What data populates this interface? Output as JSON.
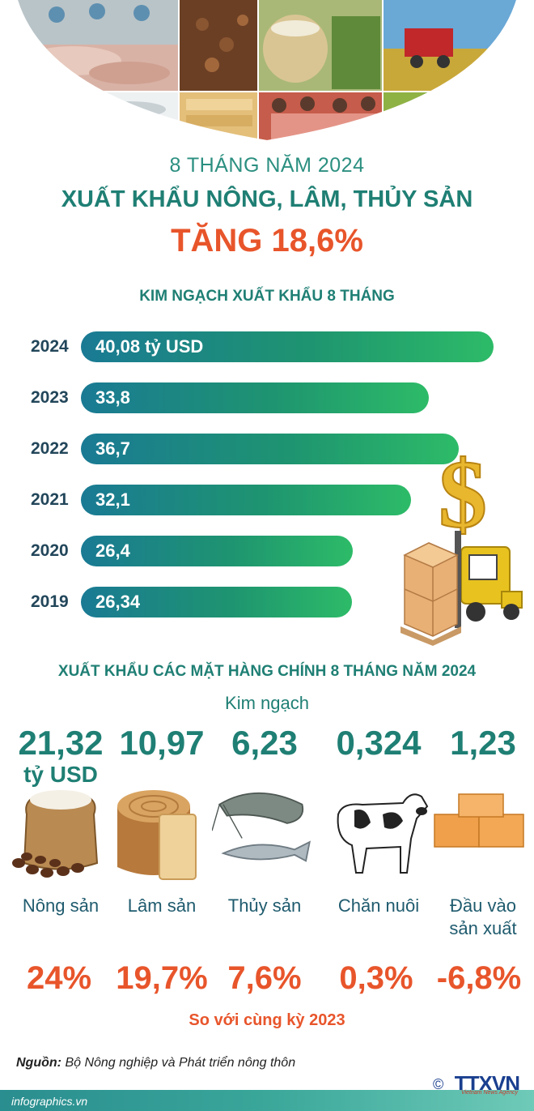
{
  "header": {
    "period": "8 THÁNG NĂM 2024",
    "headline": "XUẤT KHẨU NÔNG, LÂM, THỦY SẢN",
    "growth": "TĂNG 18,6%"
  },
  "chart_data": {
    "type": "bar",
    "title": "KIM NGẠCH XUẤT KHẨU 8 THÁNG",
    "categories": [
      "2024",
      "2023",
      "2022",
      "2021",
      "2020",
      "2019"
    ],
    "values": [
      40.08,
      33.8,
      36.7,
      32.1,
      26.4,
      26.34
    ],
    "value_labels": [
      "40,08 tỷ USD",
      "33,8",
      "36,7",
      "32,1",
      "26,4",
      "26,34"
    ],
    "unit": "tỷ USD",
    "orientation": "horizontal"
  },
  "products": {
    "title": "XUẤT KHẨU CÁC MẶT HÀNG CHÍNH 8 THÁNG NĂM 2024",
    "value_caption": "Kim ngạch",
    "unit": "tỷ USD",
    "items": [
      {
        "name": "Nông sản",
        "value": "21,32",
        "growth": "24%",
        "icon": "rice-coffee-icon"
      },
      {
        "name": "Lâm sản",
        "value": "10,97",
        "growth": "19,7%",
        "icon": "wood-icon"
      },
      {
        "name": "Thủy sản",
        "value": "6,23",
        "growth": "7,6%",
        "icon": "shrimp-fish-icon"
      },
      {
        "name": "Chăn nuôi",
        "value": "0,324",
        "growth": "0,3%",
        "icon": "cow-icon"
      },
      {
        "name": "Đầu vào\nsản xuất",
        "name_line1": "Đầu vào",
        "name_line2": "sản xuất",
        "value": "1,23",
        "growth": "-6,8%",
        "icon": "boxes-icon"
      }
    ],
    "comparison_note": "So với cùng kỳ 2023"
  },
  "footer": {
    "source_label": "Nguồn:",
    "source_text": "Bộ Nông nghiệp và Phát triển nông thôn",
    "website": "infographics.vn",
    "logo": "TTXVN",
    "logo_copyright": "©",
    "logo_tagline": "Vietnam News Agency"
  },
  "colors": {
    "teal": "#1f7f74",
    "orange": "#e8552b",
    "bar_start": "#1a7a94",
    "bar_end": "#2dbb68"
  }
}
